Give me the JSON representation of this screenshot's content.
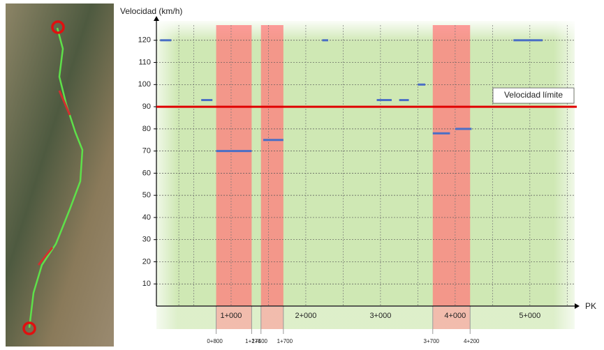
{
  "chart_data": {
    "type": "segment",
    "y_label": "Velocidad (km/h)",
    "x_label": "PK",
    "xlim": [
      0,
      5.6
    ],
    "ylim": [
      0,
      130
    ],
    "yticks": [
      10,
      20,
      30,
      40,
      50,
      60,
      70,
      80,
      90,
      100,
      110,
      120
    ],
    "xticks": [
      {
        "value": 1,
        "label": "1+000"
      },
      {
        "value": 2,
        "label": "2+000"
      },
      {
        "value": 3,
        "label": "3+000"
      },
      {
        "value": 4,
        "label": "4+000"
      },
      {
        "value": 5,
        "label": "5+000"
      }
    ],
    "xgrid": [
      0.3,
      0.5,
      1,
      1.5,
      2,
      2.5,
      3,
      3.5,
      4,
      4.5,
      5,
      5.5
    ],
    "grid": true,
    "limit": {
      "label": "Velocidad límite",
      "value": 90,
      "color": "#e00000"
    },
    "zones": [
      {
        "start": {
          "value": 0.8,
          "label": "0+800"
        },
        "end": {
          "value": 1.275,
          "label": "1+275"
        }
      },
      {
        "start": {
          "value": 1.4,
          "label": "1+400"
        },
        "end": {
          "value": 1.7,
          "label": "1+700"
        }
      },
      {
        "start": {
          "value": 3.7,
          "label": "3+700"
        },
        "end": {
          "value": 4.2,
          "label": "4+200"
        }
      }
    ],
    "segments": {
      "color": "#4a6fc6",
      "start": [
        0.05,
        0.6,
        0.8,
        1.43,
        2.22,
        2.95,
        3.25,
        3.5,
        3.7,
        4.0,
        4.78
      ],
      "end": [
        0.2,
        0.75,
        1.275,
        1.7,
        2.3,
        3.15,
        3.38,
        3.6,
        3.93,
        4.22,
        5.17
      ],
      "values": [
        120,
        93,
        70,
        75,
        120,
        93,
        93,
        100,
        78,
        80,
        120
      ]
    }
  }
}
